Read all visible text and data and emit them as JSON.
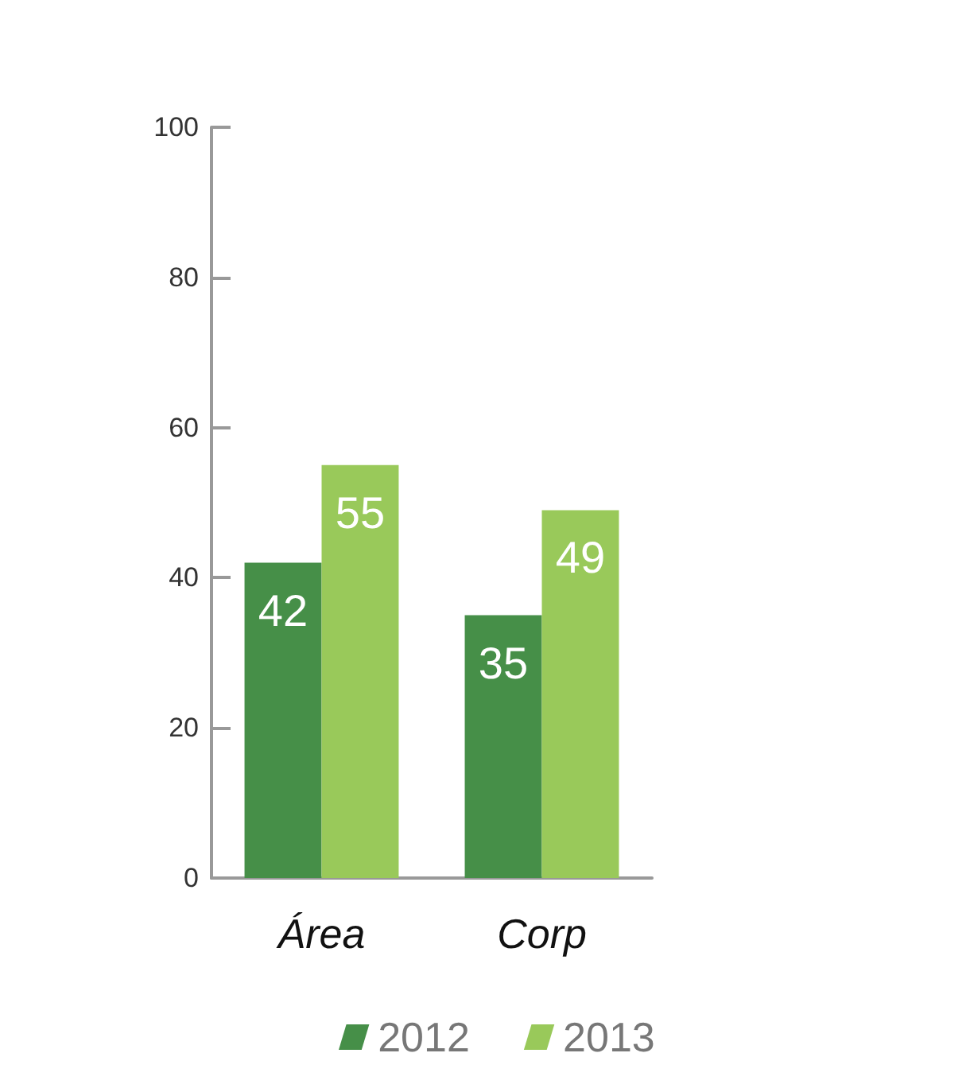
{
  "chart_data": {
    "type": "bar",
    "categories": [
      "Área",
      "Corp"
    ],
    "series": [
      {
        "name": "2012",
        "color": "#468f48",
        "values": [
          42,
          35
        ]
      },
      {
        "name": "2013",
        "color": "#99c95a",
        "values": [
          55,
          49
        ]
      }
    ],
    "ylim": [
      0,
      100
    ],
    "yticks": [
      0,
      20,
      40,
      60,
      80,
      100
    ],
    "grid": false,
    "legend": "bottom",
    "data_labels": true
  }
}
